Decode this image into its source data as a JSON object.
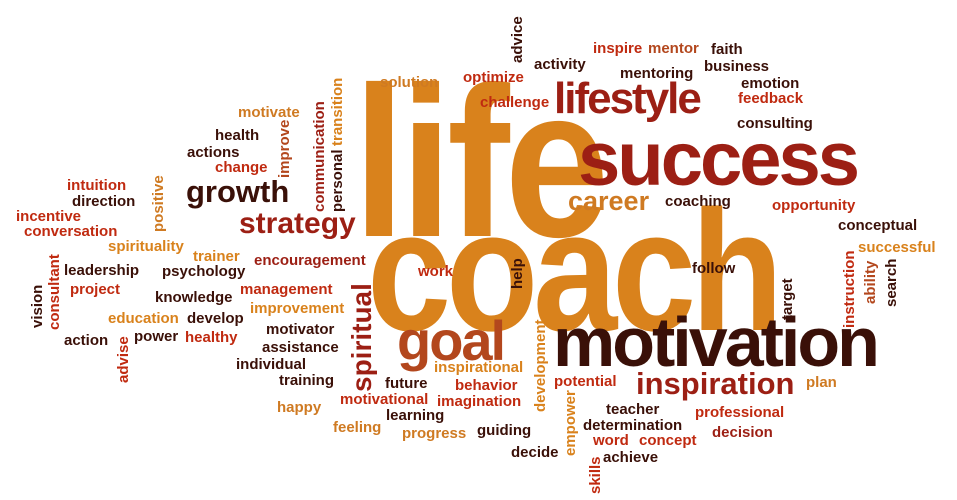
{
  "words": {
    "life": "life",
    "coach": "coach",
    "success": "success",
    "motivation": "motivation",
    "lifestyle": "lifestyle",
    "goal": "goal",
    "inspiration": "inspiration",
    "growth": "growth",
    "strategy": "strategy",
    "career": "career",
    "spiritual": "spiritual",
    "coaching": "coaching",
    "opportunity": "opportunity",
    "conceptual": "conceptual",
    "successful": "successful",
    "ability": "ability",
    "search": "search",
    "instruction": "instruction",
    "target": "target",
    "follow": "follow",
    "help": "help",
    "work": "work",
    "advice": "advice",
    "inspire": "inspire",
    "mentor": "mentor",
    "faith": "faith",
    "activity": "activity",
    "business": "business",
    "mentoring": "mentoring",
    "emotion": "emotion",
    "feedback": "feedback",
    "consulting": "consulting",
    "solution": "solution",
    "optimize": "optimize",
    "challenge": "challenge",
    "transition": "transition",
    "communication": "communication",
    "personal": "personal",
    "motivate": "motivate",
    "health": "health",
    "improve": "improve",
    "actions": "actions",
    "change": "change",
    "intuition": "intuition",
    "direction": "direction",
    "positive": "positive",
    "incentive": "incentive",
    "conversation": "conversation",
    "spirituality": "spirituality",
    "trainer": "trainer",
    "consultant": "consultant",
    "leadership": "leadership",
    "psychology": "psychology",
    "encouragement": "encouragement",
    "vision": "vision",
    "project": "project",
    "knowledge": "knowledge",
    "management": "management",
    "improvement": "improvement",
    "education": "education",
    "develop": "develop",
    "action": "action",
    "power": "power",
    "healthy": "healthy",
    "advise": "advise",
    "motivator": "motivator",
    "assistance": "assistance",
    "individual": "individual",
    "training": "training",
    "happy": "happy",
    "motivational": "motivational",
    "feeling": "feeling",
    "inspirational": "inspirational",
    "future": "future",
    "behavior": "behavior",
    "learning": "learning",
    "imagination": "imagination",
    "progress": "progress",
    "guiding": "guiding",
    "decide": "decide",
    "development": "development",
    "empower": "empower",
    "skills": "skills",
    "potential": "potential",
    "teacher": "teacher",
    "determination": "determination",
    "word": "word",
    "concept": "concept",
    "achieve": "achieve",
    "professional": "professional",
    "decision": "decision",
    "plan": "plan"
  }
}
